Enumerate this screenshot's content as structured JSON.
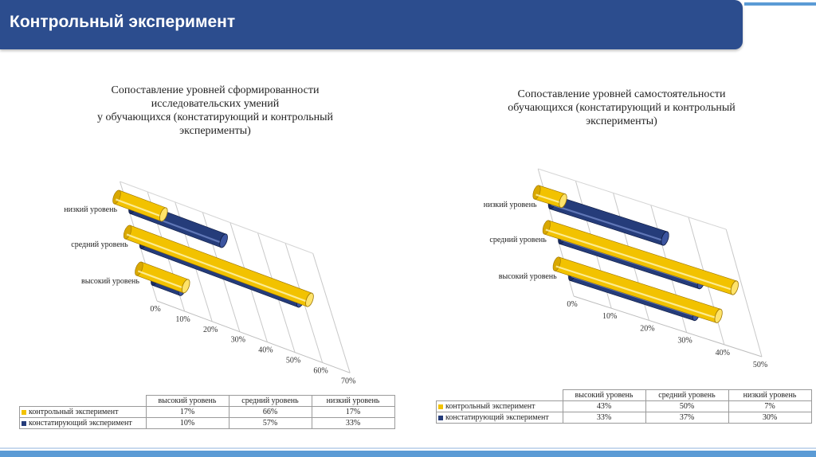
{
  "header": {
    "title": "Контрольный эксперимент"
  },
  "colors": {
    "series_control": "#f2c200",
    "series_ascertaining": "#253c7a",
    "header_bg": "#2c4d8e",
    "accent_stripe": "#5b9bd5"
  },
  "chart_data": [
    {
      "type": "bar",
      "orientation": "horizontal-3d-cylinder",
      "title": "Сопоставление уровней сформированности\nисследовательских умений\nу обучающихся (констатирующий и контрольный\nэксперименты)",
      "categories": [
        "высокий уровень",
        "средний уровень",
        "низкий уровень"
      ],
      "axis_ticks": [
        "0%",
        "10%",
        "20%",
        "30%",
        "40%",
        "50%",
        "60%",
        "70%"
      ],
      "xlim": [
        0,
        70
      ],
      "series": [
        {
          "name": "контрольный эксперимент",
          "values": [
            17,
            66,
            17
          ],
          "display": [
            "17%",
            "66%",
            "17%"
          ]
        },
        {
          "name": "констатирующий эксперимент",
          "values": [
            10,
            57,
            33
          ],
          "display": [
            "10%",
            "57%",
            "33%"
          ]
        }
      ]
    },
    {
      "type": "bar",
      "orientation": "horizontal-3d-cylinder",
      "title": "Сопоставление уровней самостоятельности\nобучающихся (констатирующий и контрольный\nэксперименты)",
      "categories": [
        "высокий уровень",
        "средний уровень",
        "низкий уровень"
      ],
      "axis_ticks": [
        "0%",
        "10%",
        "20%",
        "30%",
        "40%",
        "50%"
      ],
      "xlim": [
        0,
        50
      ],
      "series": [
        {
          "name": "контрольный эксперимент",
          "values": [
            43,
            50,
            7
          ],
          "display": [
            "43%",
            "50%",
            "7%"
          ]
        },
        {
          "name": "констатирующий эксперимент",
          "values": [
            33,
            37,
            30
          ],
          "display": [
            "33%",
            "37%",
            "30%"
          ]
        }
      ]
    }
  ]
}
